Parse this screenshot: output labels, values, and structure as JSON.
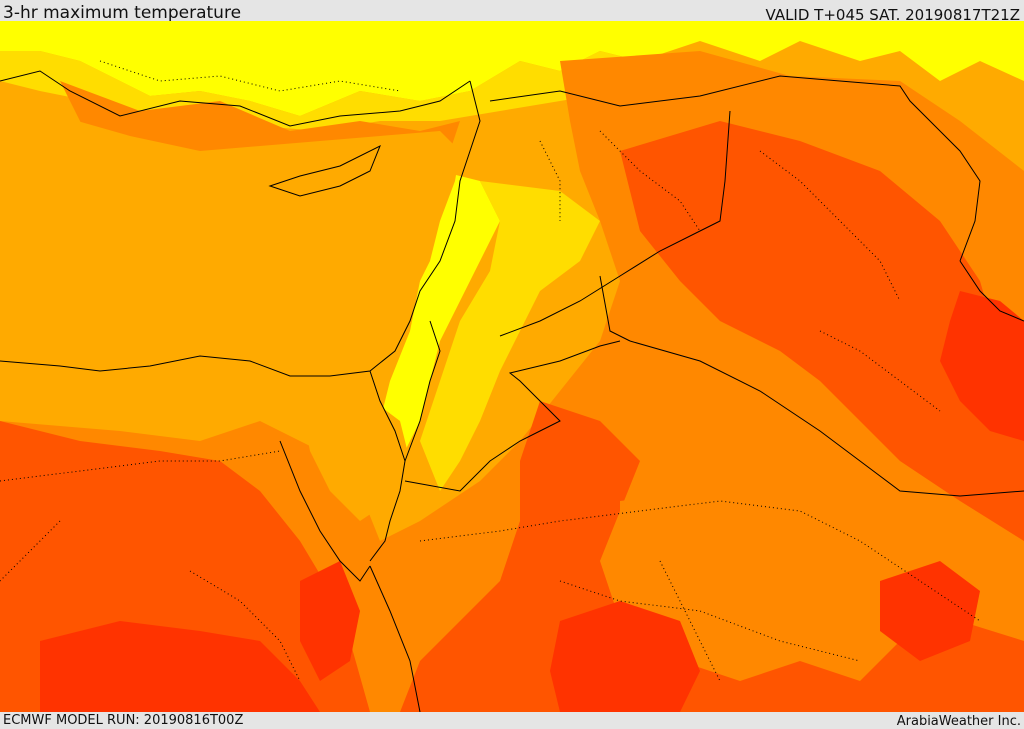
{
  "header": {
    "title": "3-hr maximum temperature",
    "valid": "VALID T+045 SAT. 20190817T21Z"
  },
  "footer": {
    "model_run": "ECMWF MODEL RUN: 20190816T00Z",
    "credit": "ArabiaWeather Inc."
  },
  "palette": {
    "yellow": "#ffff00",
    "light_yellow": "#ffdd00",
    "orange_light": "#ffaa00",
    "orange": "#ff8800",
    "orange_deep": "#ff5500",
    "red_orange": "#ff3300"
  }
}
